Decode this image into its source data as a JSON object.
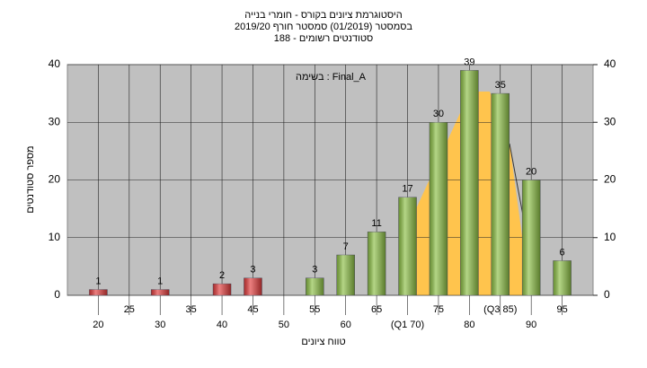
{
  "chart_data": {
    "type": "bar",
    "title": "היסטוגרמת ציונים בקורס - חומרי בנייה",
    "subtitle": "בסמסטר (01/2019) סמסטר חורף 2019/20",
    "subtitle2": "סטודנטים רשומים - 188",
    "annotation": "בשימה : Final_A",
    "xlabel": "טווח ציונים",
    "ylabel": "מספר סטודנטים",
    "x": [
      20,
      30,
      40,
      45,
      55,
      60,
      65,
      70,
      75,
      80,
      85,
      90,
      95
    ],
    "values": [
      1,
      1,
      2,
      3,
      3,
      7,
      11,
      17,
      30,
      39,
      35,
      20,
      6
    ],
    "colors": [
      "#e23b3b",
      "#e23b3b",
      "#e23b3b",
      "#e23b3b",
      "#8cbf45",
      "#8cbf45",
      "#8cbf45",
      "#8cbf45",
      "#8cbf45",
      "#8cbf45",
      "#8cbf45",
      "#8cbf45",
      "#8cbf45"
    ],
    "xlim": [
      15,
      100
    ],
    "xticks": [
      20,
      25,
      30,
      35,
      40,
      45,
      50,
      55,
      60,
      65,
      {
        "value": 70,
        "label": "(Q1 70)"
      },
      75,
      80,
      {
        "value": 85,
        "label": "(Q3 85)"
      },
      90,
      95
    ],
    "ylim": [
      0,
      40
    ],
    "yticks": [
      0,
      10,
      20,
      30,
      40
    ],
    "y2lim": [
      0,
      40
    ],
    "y2ticks": [
      0,
      10,
      20,
      30,
      40
    ],
    "grid": true
  }
}
